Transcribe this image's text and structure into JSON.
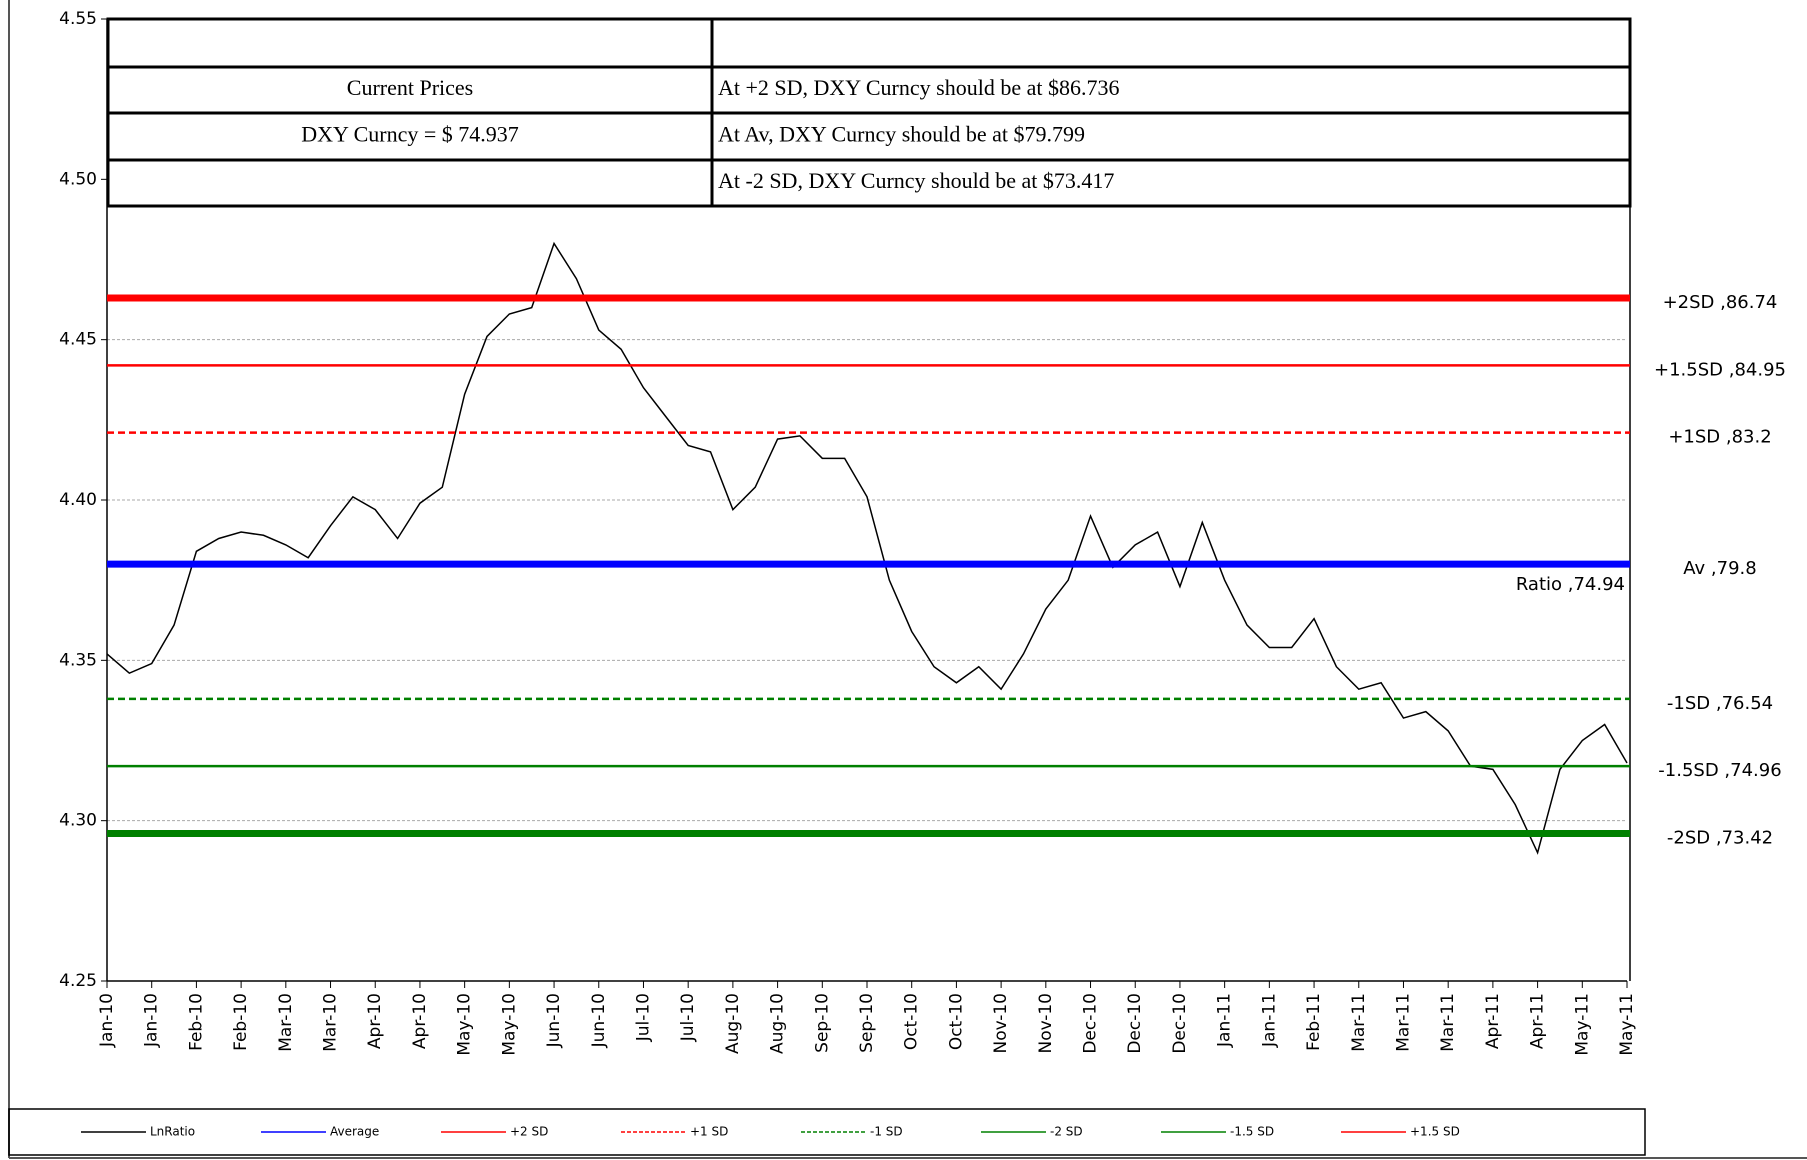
{
  "chart_data": {
    "type": "line",
    "table_rows": [
      [
        null,
        null
      ],
      [
        "Current Prices",
        "At +2 SD, DXY Curncy should be at $86.736"
      ],
      [
        "DXY Curncy =  $ 74.937",
        "At Av, DXY Curncy should be at $79.799"
      ],
      [
        null,
        "At -2 SD, DXY Curncy should be at $73.417"
      ]
    ],
    "x": [
      0,
      0.5,
      1,
      1.5,
      2,
      2.5,
      3,
      3.5,
      4,
      4.5,
      5,
      5.5,
      6,
      6.5,
      7,
      7.5,
      8,
      8.5,
      9,
      9.5,
      10,
      10.5,
      11,
      11.5,
      12,
      12.5,
      13,
      13.5,
      14,
      14.5,
      15,
      15.5,
      16,
      16.5,
      17,
      17.5,
      18,
      18.5,
      19,
      19.5,
      20,
      20.5,
      21,
      21.5,
      22,
      22.5,
      23,
      23.5,
      24,
      24.5,
      25,
      25.5,
      26,
      26.5,
      27,
      27.5,
      28,
      28.5,
      29,
      29.5,
      30,
      30.5,
      31,
      31.5,
      32,
      32.5,
      33,
      33.5,
      34
    ],
    "xlim": [
      0,
      34
    ],
    "xticks": [
      {
        "value": 0,
        "label": "Jan-10"
      },
      {
        "value": 1,
        "label": "Jan-10"
      },
      {
        "value": 2,
        "label": "Feb-10"
      },
      {
        "value": 3,
        "label": "Feb-10"
      },
      {
        "value": 4,
        "label": "Mar-10"
      },
      {
        "value": 5,
        "label": "Mar-10"
      },
      {
        "value": 6,
        "label": "Apr-10"
      },
      {
        "value": 7,
        "label": "Apr-10"
      },
      {
        "value": 8,
        "label": "May-10"
      },
      {
        "value": 9,
        "label": "May-10"
      },
      {
        "value": 10,
        "label": "Jun-10"
      },
      {
        "value": 11,
        "label": "Jun-10"
      },
      {
        "value": 12,
        "label": "Jul-10"
      },
      {
        "value": 13,
        "label": "Jul-10"
      },
      {
        "value": 14,
        "label": "Aug-10"
      },
      {
        "value": 15,
        "label": "Aug-10"
      },
      {
        "value": 16,
        "label": "Sep-10"
      },
      {
        "value": 17,
        "label": "Sep-10"
      },
      {
        "value": 18,
        "label": "Oct-10"
      },
      {
        "value": 19,
        "label": "Oct-10"
      },
      {
        "value": 20,
        "label": "Nov-10"
      },
      {
        "value": 21,
        "label": "Nov-10"
      },
      {
        "value": 22,
        "label": "Dec-10"
      },
      {
        "value": 23,
        "label": "Dec-10"
      },
      {
        "value": 24,
        "label": "Dec-10"
      },
      {
        "value": 25,
        "label": "Jan-11"
      },
      {
        "value": 26,
        "label": "Jan-11"
      },
      {
        "value": 27,
        "label": "Feb-11"
      },
      {
        "value": 28,
        "label": "Mar-11"
      },
      {
        "value": 29,
        "label": "Mar-11"
      },
      {
        "value": 30,
        "label": "Mar-11"
      },
      {
        "value": 31,
        "label": "Apr-11"
      },
      {
        "value": 32,
        "label": "Apr-11"
      },
      {
        "value": 33,
        "label": "May-11"
      },
      {
        "value": 34,
        "label": "May-11"
      }
    ],
    "ylim": [
      4.25,
      4.55
    ],
    "yticks": [
      4.25,
      {
        "value": 4.3,
        "label": "4.30"
      },
      4.35,
      {
        "value": 4.4,
        "label": "4.40"
      },
      4.45,
      {
        "value": 4.5,
        "label": "4.50"
      },
      4.55
    ],
    "grid": true,
    "series": [
      {
        "name": "LnRatio",
        "color": "#000000",
        "end_label": "Ratio ,74.94",
        "values": [
          4.352,
          4.346,
          4.349,
          4.361,
          4.384,
          4.388,
          4.39,
          4.389,
          4.386,
          4.382,
          4.392,
          4.401,
          4.397,
          4.388,
          4.399,
          4.404,
          4.433,
          4.451,
          4.458,
          4.46,
          4.48,
          4.469,
          4.453,
          4.447,
          4.435,
          4.426,
          4.417,
          4.415,
          4.397,
          4.404,
          4.419,
          4.42,
          4.413,
          4.413,
          4.401,
          4.375,
          4.359,
          4.348,
          4.343,
          4.348,
          4.341,
          4.352,
          4.366,
          4.375,
          4.395,
          4.379,
          4.386,
          4.39,
          4.373,
          4.393,
          4.375,
          4.361,
          4.354,
          4.354,
          4.363,
          4.348,
          4.341,
          4.343,
          4.332,
          4.334,
          4.328,
          4.317,
          4.316,
          4.305,
          4.29,
          4.316,
          4.325,
          4.33,
          4.318
        ]
      },
      {
        "name": "Average",
        "color": "#0000ff",
        "value": 4.38,
        "weight": "thick",
        "dashed": false,
        "label": "Av ,79.8"
      },
      {
        "name": "+2 SD",
        "color": "#ff0000",
        "value": 4.463,
        "weight": "thick",
        "dashed": false,
        "label": "+2SD ,86.74"
      },
      {
        "name": "+1 SD",
        "color": "#ff0000",
        "value": 4.421,
        "weight": "thin",
        "dashed": true,
        "label": "+1SD ,83.2"
      },
      {
        "name": "-1 SD",
        "color": "#008000",
        "value": 4.338,
        "weight": "thin",
        "dashed": true,
        "label": "-1SD ,76.54"
      },
      {
        "name": "-2 SD",
        "color": "#008000",
        "value": 4.296,
        "weight": "thick",
        "dashed": false,
        "label": "-2SD ,73.42"
      },
      {
        "name": "-1.5 SD",
        "color": "#008000",
        "value": 4.317,
        "weight": "thin",
        "dashed": false,
        "label": "-1.5SD ,74.96"
      },
      {
        "name": "+1.5 SD",
        "color": "#ff0000",
        "value": 4.442,
        "weight": "thin",
        "dashed": false,
        "label": "+1.5SD ,84.95"
      }
    ]
  }
}
